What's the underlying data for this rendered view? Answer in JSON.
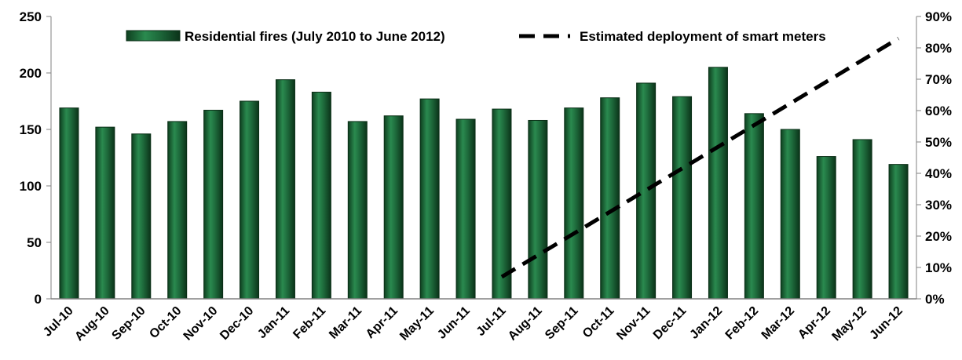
{
  "chart_data": {
    "type": "bar",
    "categories": [
      "Jul-10",
      "Aug-10",
      "Sep-10",
      "Oct-10",
      "Nov-10",
      "Dec-10",
      "Jan-11",
      "Feb-11",
      "Mar-11",
      "Apr-11",
      "May-11",
      "Jun-11",
      "Jul-11",
      "Aug-11",
      "Sep-11",
      "Oct-11",
      "Nov-11",
      "Dec-11",
      "Jan-12",
      "Feb-12",
      "Mar-12",
      "Apr-12",
      "May-12",
      "Jun-12"
    ],
    "series": [
      {
        "name": "Residential fires (July 2010 to June 2012)",
        "type": "bar",
        "axis": "left",
        "color": "#1e6b3c",
        "values": [
          169,
          152,
          146,
          157,
          167,
          175,
          194,
          183,
          157,
          162,
          177,
          159,
          168,
          158,
          169,
          178,
          191,
          179,
          205,
          164,
          150,
          126,
          141,
          119
        ]
      },
      {
        "name": "Estimated deployment of smart meters",
        "type": "line",
        "axis": "right",
        "style": "dashed",
        "color": "#000000",
        "start_category": "Jul-11",
        "end_category": "Jun-12",
        "start_value": 0.07,
        "end_value": 0.83
      }
    ],
    "ylim": [
      0,
      250
    ],
    "yticks": [
      "0",
      "50",
      "100",
      "150",
      "200",
      "250"
    ],
    "y2lim": [
      0,
      0.9
    ],
    "y2ticks": [
      "0%",
      "10%",
      "20%",
      "30%",
      "40%",
      "50%",
      "60%",
      "70%",
      "80%",
      "90%"
    ],
    "xlabel": "",
    "ylabel": "",
    "legend_position": "top",
    "grid": false
  }
}
